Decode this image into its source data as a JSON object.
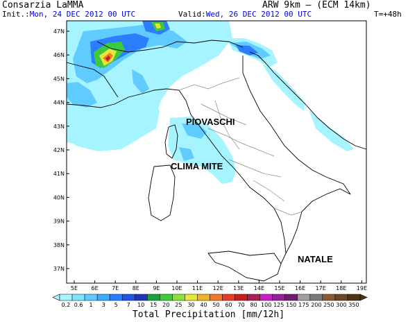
{
  "header": {
    "org": "Consarzia LaMMA",
    "model": "ARW 9km — (ECM 14km)",
    "init_label": "Init.:",
    "init_date": "Mon, 24 DEC 2012  00 UTC",
    "valid_label": "Valid:",
    "valid_date": "Wed, 26 DEC 2012  00 UTC",
    "lead_time": "T=+48h"
  },
  "map": {
    "lat_labels": [
      "47N",
      "46N",
      "45N",
      "44N",
      "43N",
      "42N",
      "41N",
      "40N",
      "39N",
      "38N",
      "37N"
    ],
    "lon_labels": [
      "5E",
      "6E",
      "7E",
      "8E",
      "9E",
      "10E",
      "11E",
      "12E",
      "13E",
      "14E",
      "15E",
      "16E",
      "17E",
      "18E",
      "19E"
    ],
    "annotations": {
      "piovaschi": "PIOVASCHI",
      "clima_mite": "CLIMA MITE",
      "natale": "NATALE"
    }
  },
  "colorbar": {
    "labels": [
      "0.2",
      "0.6",
      "1",
      "3",
      "5",
      "7",
      "10",
      "15",
      "20",
      "25",
      "30",
      "40",
      "50",
      "60",
      "70",
      "80",
      "100",
      "125",
      "150",
      "175",
      "200",
      "250",
      "300",
      "350"
    ],
    "colors": [
      "#a6f4ff",
      "#7fe3ff",
      "#5fcbff",
      "#3fa9ff",
      "#2b7fff",
      "#1f55e6",
      "#1d33b8",
      "#1ea03c",
      "#3ccb3c",
      "#8be03c",
      "#e6e63c",
      "#f0b428",
      "#f07828",
      "#e63c28",
      "#c81e1e",
      "#aa1e50",
      "#c81ec8",
      "#961e96",
      "#6e1e6e",
      "#a0a0a0",
      "#7a7a7a",
      "#8c5a32",
      "#6e4626",
      "#503214"
    ],
    "title": "Total Precipitation [mm/12h]"
  }
}
